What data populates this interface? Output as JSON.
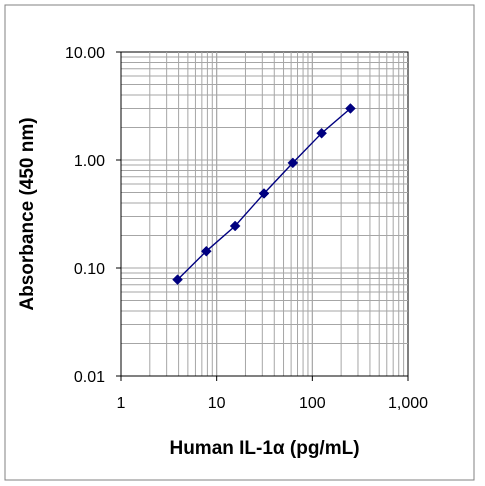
{
  "chart_data": {
    "type": "line",
    "title": "",
    "xlabel": "Human IL-1α (pg/mL)",
    "ylabel": "Absorbance (450 nm)",
    "x_scale": "log",
    "y_scale": "log",
    "xlim": [
      1,
      1000
    ],
    "ylim": [
      0.01,
      10
    ],
    "x_tick_labels": [
      "1",
      "10",
      "100",
      "1,000"
    ],
    "y_tick_labels": [
      "10.00",
      "1.00",
      "0.10",
      "0.01"
    ],
    "grid": true,
    "legend": "none",
    "series": [
      {
        "x": [
          3.9,
          7.8,
          15.6,
          31.25,
          62.5,
          125,
          250
        ],
        "y": [
          0.078,
          0.143,
          0.245,
          0.49,
          0.94,
          1.77,
          3.0
        ]
      }
    ],
    "colors": {
      "series": "#000080",
      "grid": "#a6a6a6",
      "frame": "#808080",
      "axis": "#000000"
    },
    "marker": "diamond"
  }
}
